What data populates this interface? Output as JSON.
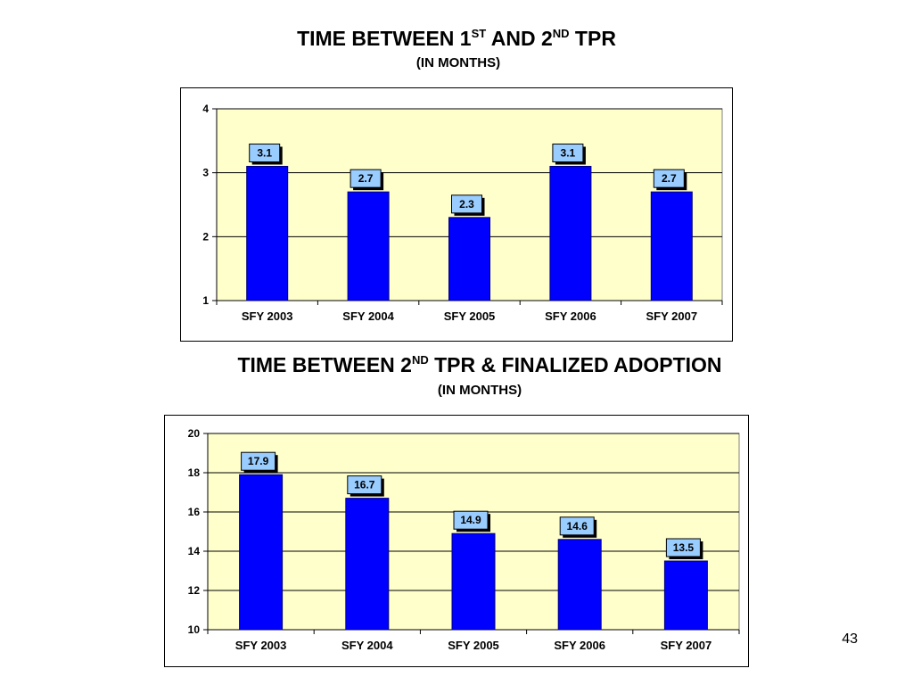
{
  "slide": {
    "title1": {
      "pre": "TIME BETWEEN 1",
      "sup1": "ST",
      "mid": " AND 2",
      "sup2": "ND",
      "post": " TPR"
    },
    "subtitle1": "(IN MONTHS)",
    "title2": {
      "pre": "TIME BETWEEN 2",
      "sup1": "ND",
      "post": " TPR & FINALIZED ADOPTION"
    },
    "subtitle2": "(IN MONTHS)",
    "page_number": "43"
  },
  "colors": {
    "bar": "#0000FF",
    "bar_stroke": "#000080",
    "plot_bg": "#FFFFCC",
    "label_bg": "#99CCFF"
  },
  "chart_data": [
    {
      "type": "bar",
      "categories": [
        "SFY 2003",
        "SFY 2004",
        "SFY 2005",
        "SFY 2006",
        "SFY 2007"
      ],
      "values": [
        3.1,
        2.7,
        2.3,
        3.1,
        2.7
      ],
      "value_labels": [
        "3.1",
        "2.7",
        "2.3",
        "3.1",
        "2.7"
      ],
      "ylim": [
        1,
        4
      ],
      "yticks": [
        "1",
        "2",
        "3",
        "4"
      ],
      "ytick_values": [
        1,
        2,
        3,
        4
      ],
      "grid": true
    },
    {
      "type": "bar",
      "categories": [
        "SFY 2003",
        "SFY 2004",
        "SFY 2005",
        "SFY 2006",
        "SFY 2007"
      ],
      "values": [
        17.9,
        16.7,
        14.9,
        14.6,
        13.5
      ],
      "value_labels": [
        "17.9",
        "16.7",
        "14.9",
        "14.6",
        "13.5"
      ],
      "ylim": [
        10,
        20
      ],
      "yticks": [
        "10",
        "12",
        "14",
        "16",
        "18",
        "20"
      ],
      "ytick_values": [
        10,
        12,
        14,
        16,
        18,
        20
      ],
      "grid": true
    }
  ]
}
